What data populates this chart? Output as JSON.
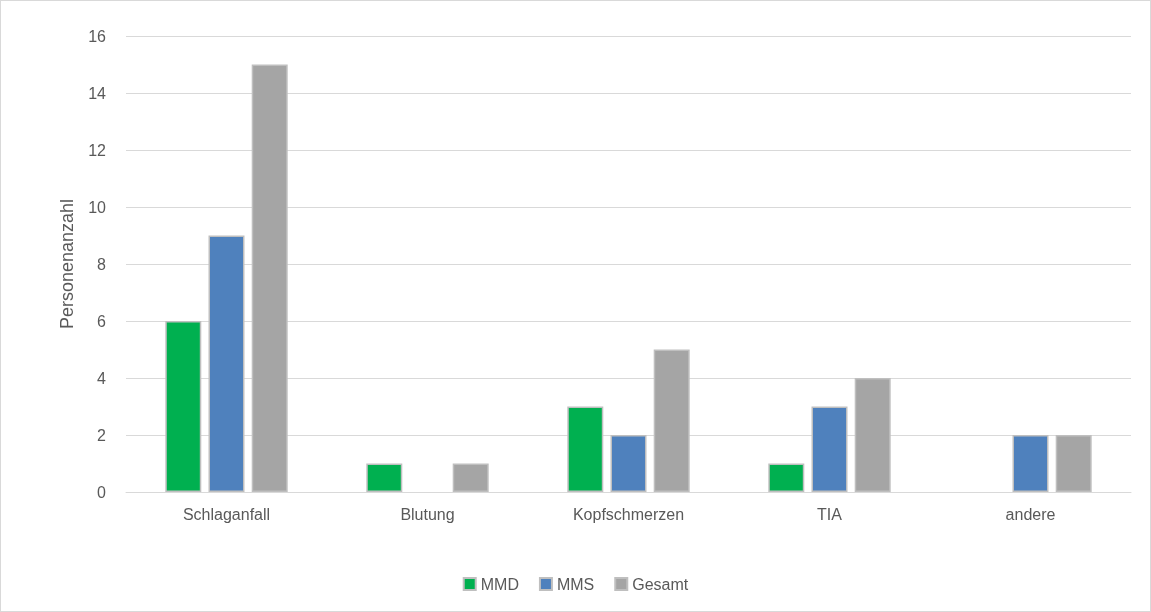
{
  "chart_data": {
    "type": "bar",
    "ylabel": "Personenanzahl",
    "categories": [
      "Schlaganfall",
      "Blutung",
      "Kopfschmerzen",
      "TIA",
      "andere"
    ],
    "series": [
      {
        "name": "MMD",
        "color": "#00b050",
        "values": [
          6,
          1,
          3,
          1,
          0
        ]
      },
      {
        "name": "MMS",
        "color": "#4f81bd",
        "values": [
          9,
          0,
          2,
          3,
          2
        ]
      },
      {
        "name": "Gesamt",
        "color": "#a5a5a5",
        "values": [
          15,
          1,
          5,
          4,
          2
        ]
      }
    ],
    "ylim": [
      0,
      16
    ],
    "yticks": [
      0,
      2,
      4,
      6,
      8,
      10,
      12,
      14,
      16
    ],
    "grid": "y",
    "legend": "bottom"
  }
}
